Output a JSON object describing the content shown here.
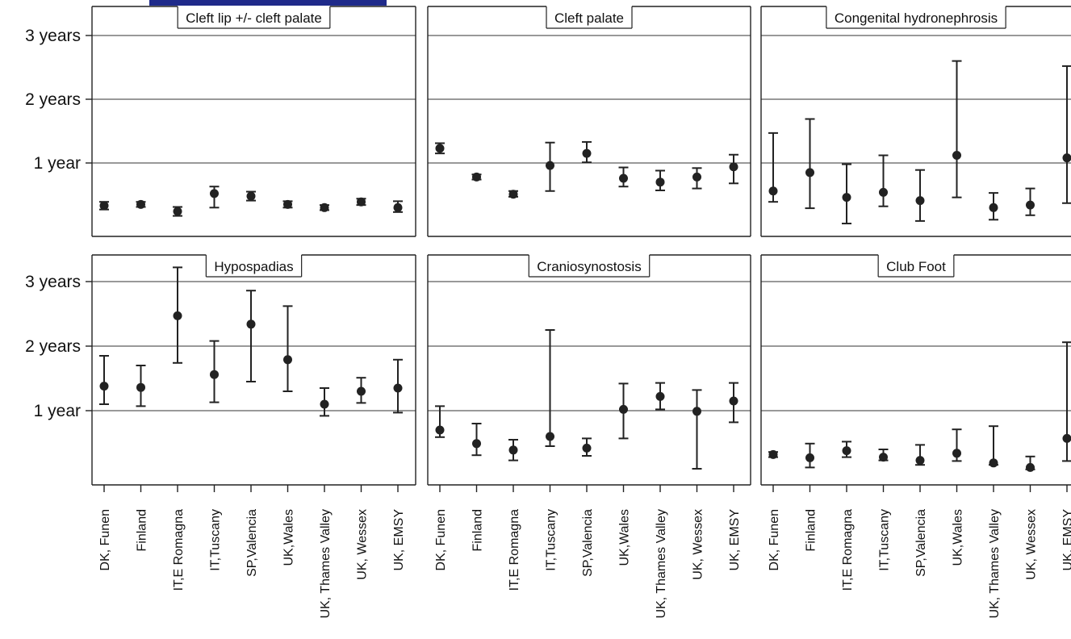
{
  "header": {
    "bar_color": "#1f2a8a"
  },
  "chart_data": {
    "type": "errorbar",
    "layout": "2x3 small multiples",
    "y_unit": "years",
    "ylim": [
      0,
      3.2
    ],
    "y_ticks": [
      {
        "value": 1,
        "label": "1 year"
      },
      {
        "value": 2,
        "label": "2 years"
      },
      {
        "value": 3,
        "label": "3 years"
      }
    ],
    "grid": "horizontal",
    "categories": [
      "DK, Funen",
      "Finland",
      "IT,E Romagna",
      "IT,Tuscany",
      "SP,Valencia",
      "UK,Wales",
      "UK, Thames Valley",
      "UK, Wessex",
      "UK, EMSY"
    ],
    "marker_color": "#222222",
    "panels": [
      {
        "title": "Cleft lip +/- cleft palate",
        "points": [
          {
            "y": 0.33,
            "low": 0.27,
            "high": 0.39
          },
          {
            "y": 0.35,
            "low": 0.31,
            "high": 0.39
          },
          {
            "y": 0.24,
            "low": 0.17,
            "high": 0.31
          },
          {
            "y": 0.52,
            "low": 0.3,
            "high": 0.63
          },
          {
            "y": 0.48,
            "low": 0.41,
            "high": 0.55
          },
          {
            "y": 0.35,
            "low": 0.3,
            "high": 0.4
          },
          {
            "y": 0.3,
            "low": 0.26,
            "high": 0.34
          },
          {
            "y": 0.39,
            "low": 0.34,
            "high": 0.44
          },
          {
            "y": 0.3,
            "low": 0.23,
            "high": 0.4
          }
        ]
      },
      {
        "title": "Cleft palate",
        "points": [
          {
            "y": 1.23,
            "low": 1.15,
            "high": 1.31
          },
          {
            "y": 0.78,
            "low": 0.74,
            "high": 0.82
          },
          {
            "y": 0.51,
            "low": 0.47,
            "high": 0.56
          },
          {
            "y": 0.96,
            "low": 0.56,
            "high": 1.32
          },
          {
            "y": 1.15,
            "low": 1.01,
            "high": 1.33
          },
          {
            "y": 0.76,
            "low": 0.63,
            "high": 0.93
          },
          {
            "y": 0.7,
            "low": 0.57,
            "high": 0.88
          },
          {
            "y": 0.78,
            "low": 0.6,
            "high": 0.92
          },
          {
            "y": 0.94,
            "low": 0.68,
            "high": 1.13
          }
        ]
      },
      {
        "title": "Congenital hydronephrosis",
        "points": [
          {
            "y": 0.56,
            "low": 0.39,
            "high": 1.47
          },
          {
            "y": 0.85,
            "low": 0.29,
            "high": 1.69
          },
          {
            "y": 0.46,
            "low": 0.05,
            "high": 0.98
          },
          {
            "y": 0.54,
            "low": 0.32,
            "high": 1.12
          },
          {
            "y": 0.41,
            "low": 0.09,
            "high": 0.89
          },
          {
            "y": 1.12,
            "low": 0.46,
            "high": 2.6
          },
          {
            "y": 0.3,
            "low": 0.11,
            "high": 0.53
          },
          {
            "y": 0.34,
            "low": 0.18,
            "high": 0.6
          },
          {
            "y": 1.08,
            "low": 0.37,
            "high": 2.52
          }
        ]
      },
      {
        "title": "Hypospadias",
        "points": [
          {
            "y": 1.38,
            "low": 1.1,
            "high": 1.85
          },
          {
            "y": 1.36,
            "low": 1.07,
            "high": 1.7
          },
          {
            "y": 2.47,
            "low": 1.74,
            "high": 3.22
          },
          {
            "y": 1.56,
            "low": 1.13,
            "high": 2.08
          },
          {
            "y": 2.34,
            "low": 1.45,
            "high": 2.86
          },
          {
            "y": 1.79,
            "low": 1.3,
            "high": 2.62
          },
          {
            "y": 1.1,
            "low": 0.92,
            "high": 1.35
          },
          {
            "y": 1.3,
            "low": 1.12,
            "high": 1.51
          },
          {
            "y": 1.35,
            "low": 0.97,
            "high": 1.79
          }
        ]
      },
      {
        "title": "Craniosynostosis",
        "points": [
          {
            "y": 0.7,
            "low": 0.59,
            "high": 1.07
          },
          {
            "y": 0.49,
            "low": 0.31,
            "high": 0.8
          },
          {
            "y": 0.39,
            "low": 0.23,
            "high": 0.55
          },
          {
            "y": 0.6,
            "low": 0.45,
            "high": 2.25
          },
          {
            "y": 0.42,
            "low": 0.3,
            "high": 0.57
          },
          {
            "y": 1.02,
            "low": 0.57,
            "high": 1.42
          },
          {
            "y": 1.22,
            "low": 1.02,
            "high": 1.43
          },
          {
            "y": 0.99,
            "low": 0.1,
            "high": 1.32
          },
          {
            "y": 1.15,
            "low": 0.82,
            "high": 1.43
          }
        ]
      },
      {
        "title": "Club Foot",
        "points": [
          {
            "y": 0.32,
            "low": 0.28,
            "high": 0.36
          },
          {
            "y": 0.27,
            "low": 0.12,
            "high": 0.49
          },
          {
            "y": 0.38,
            "low": 0.28,
            "high": 0.52
          },
          {
            "y": 0.28,
            "low": 0.23,
            "high": 0.4
          },
          {
            "y": 0.23,
            "low": 0.16,
            "high": 0.47
          },
          {
            "y": 0.34,
            "low": 0.22,
            "high": 0.71
          },
          {
            "y": 0.19,
            "low": 0.16,
            "high": 0.76
          },
          {
            "y": 0.12,
            "low": 0.09,
            "high": 0.29
          },
          {
            "y": 0.57,
            "low": 0.22,
            "high": 2.06
          }
        ]
      }
    ]
  }
}
